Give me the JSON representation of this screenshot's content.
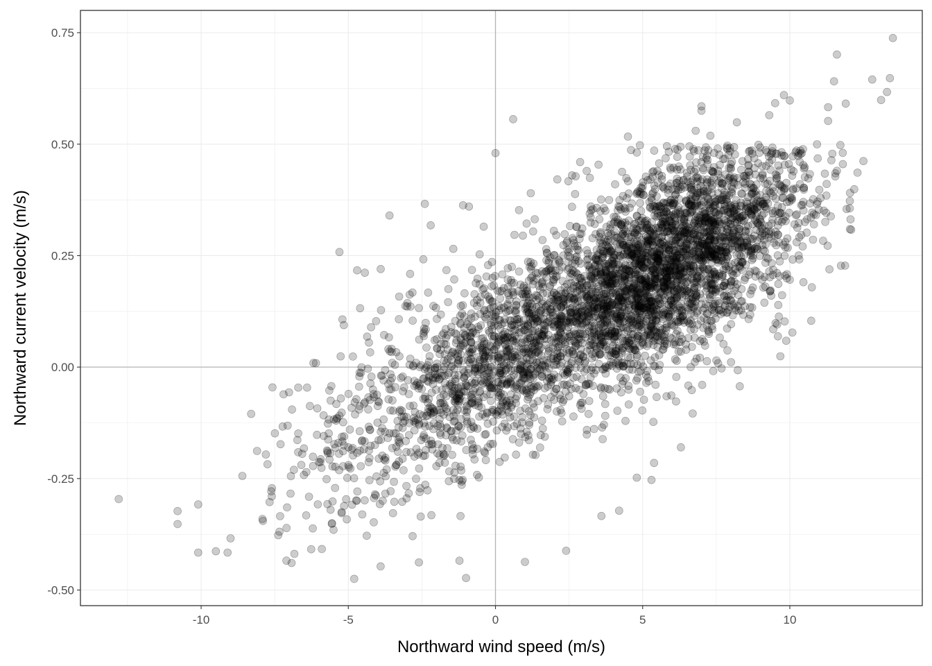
{
  "chart_data": {
    "type": "scatter",
    "title": "",
    "xlabel": "Northward wind speed (m/s)",
    "ylabel": "Northward current velocity (m/s)",
    "xlim": [
      -14.1,
      14.5
    ],
    "ylim": [
      -0.535,
      0.8
    ],
    "x_ticks": [
      -10,
      -5,
      0,
      5,
      10
    ],
    "x_tick_labels": [
      "-10",
      "-5",
      "0",
      "5",
      "10"
    ],
    "y_ticks": [
      -0.5,
      -0.25,
      0,
      0.25,
      0.5,
      0.75
    ],
    "y_tick_labels": [
      "-0.50",
      "-0.25",
      "0.00",
      "0.25",
      "0.50",
      "0.75"
    ],
    "grid": true,
    "reference_lines": {
      "x": 0,
      "y": 0
    },
    "point_color": "#000000",
    "point_alpha": 0.2,
    "trend": {
      "slope": 0.036,
      "intercept": 0.015,
      "residual_sd": 0.105
    },
    "n_points_approx": 4500,
    "points": [
      [
        -12.8,
        -0.296
      ],
      [
        -10.8,
        -0.323
      ],
      [
        -10.8,
        -0.352
      ],
      [
        -10.1,
        -0.308
      ],
      [
        -10.1,
        -0.416
      ],
      [
        -9.5,
        -0.413
      ],
      [
        -9.1,
        -0.416
      ],
      [
        -9.0,
        -0.384
      ],
      [
        -8.6,
        -0.244
      ],
      [
        -8.3,
        -0.105
      ],
      [
        -8.1,
        -0.188
      ],
      [
        -7.9,
        -0.345
      ],
      [
        -7.8,
        -0.196
      ],
      [
        -7.6,
        -0.29
      ],
      [
        -7.3,
        -0.173
      ],
      [
        -7.2,
        -0.061
      ],
      [
        -7.1,
        -0.434
      ],
      [
        -6.7,
        -0.046
      ],
      [
        -6.7,
        -0.149
      ],
      [
        -6.4,
        -0.046
      ],
      [
        -6.1,
        0.009
      ],
      [
        -5.6,
        -0.075
      ],
      [
        -5.3,
        0.258
      ],
      [
        -5.2,
        0.107
      ],
      [
        -4.7,
        0.217
      ],
      [
        -4.6,
        0.132
      ],
      [
        -4.3,
        0.055
      ],
      [
        -3.9,
        0.22
      ],
      [
        -3.6,
        0.34
      ],
      [
        -3.0,
        0.136
      ],
      [
        -2.9,
        0.209
      ],
      [
        -2.4,
        0.366
      ],
      [
        -2.2,
        0.318
      ],
      [
        -1.6,
        0.175
      ],
      [
        -1.5,
        0.09
      ],
      [
        -1.1,
        0.363
      ],
      [
        -0.9,
        0.36
      ],
      [
        -0.4,
        0.315
      ],
      [
        -0.1,
        0.2
      ],
      [
        0.0,
        0.48
      ],
      [
        0.6,
        0.556
      ],
      [
        0.8,
        0.352
      ],
      [
        1.2,
        0.39
      ],
      [
        1.6,
        0.285
      ],
      [
        2.1,
        0.421
      ],
      [
        2.6,
        0.43
      ],
      [
        3.1,
        0.44
      ],
      [
        3.5,
        0.454
      ],
      [
        4.3,
        0.438
      ],
      [
        4.5,
        0.517
      ],
      [
        5.5,
        0.44
      ],
      [
        6.6,
        0.472
      ],
      [
        6.8,
        0.53
      ],
      [
        7.0,
        0.585
      ],
      [
        7.0,
        0.575
      ],
      [
        7.3,
        0.519
      ],
      [
        8.2,
        0.549
      ],
      [
        9.3,
        0.565
      ],
      [
        9.5,
        0.592
      ],
      [
        9.8,
        0.61
      ],
      [
        10.0,
        0.598
      ],
      [
        10.3,
        0.48
      ],
      [
        11.3,
        0.583
      ],
      [
        11.3,
        0.552
      ],
      [
        11.5,
        0.641
      ],
      [
        11.6,
        0.701
      ],
      [
        11.9,
        0.591
      ],
      [
        12.3,
        0.436
      ],
      [
        12.5,
        0.462
      ],
      [
        12.8,
        0.645
      ],
      [
        13.1,
        0.599
      ],
      [
        13.3,
        0.617
      ],
      [
        13.4,
        0.648
      ],
      [
        13.5,
        0.738
      ],
      [
        10.0,
        0.196
      ],
      [
        8.3,
        -0.043
      ],
      [
        7.4,
        -0.009
      ],
      [
        6.7,
        -0.104
      ],
      [
        6.3,
        -0.18
      ],
      [
        5.3,
        -0.253
      ],
      [
        4.8,
        -0.248
      ],
      [
        4.2,
        -0.322
      ],
      [
        3.6,
        -0.334
      ],
      [
        2.4,
        -0.412
      ],
      [
        1.0,
        -0.437
      ],
      [
        -1.0,
        -0.473
      ],
      [
        -2.6,
        -0.438
      ],
      [
        -4.8,
        -0.475
      ],
      [
        -5.5,
        -0.365
      ],
      [
        -5.9,
        -0.408
      ],
      [
        -6.2,
        -0.201
      ]
    ]
  }
}
